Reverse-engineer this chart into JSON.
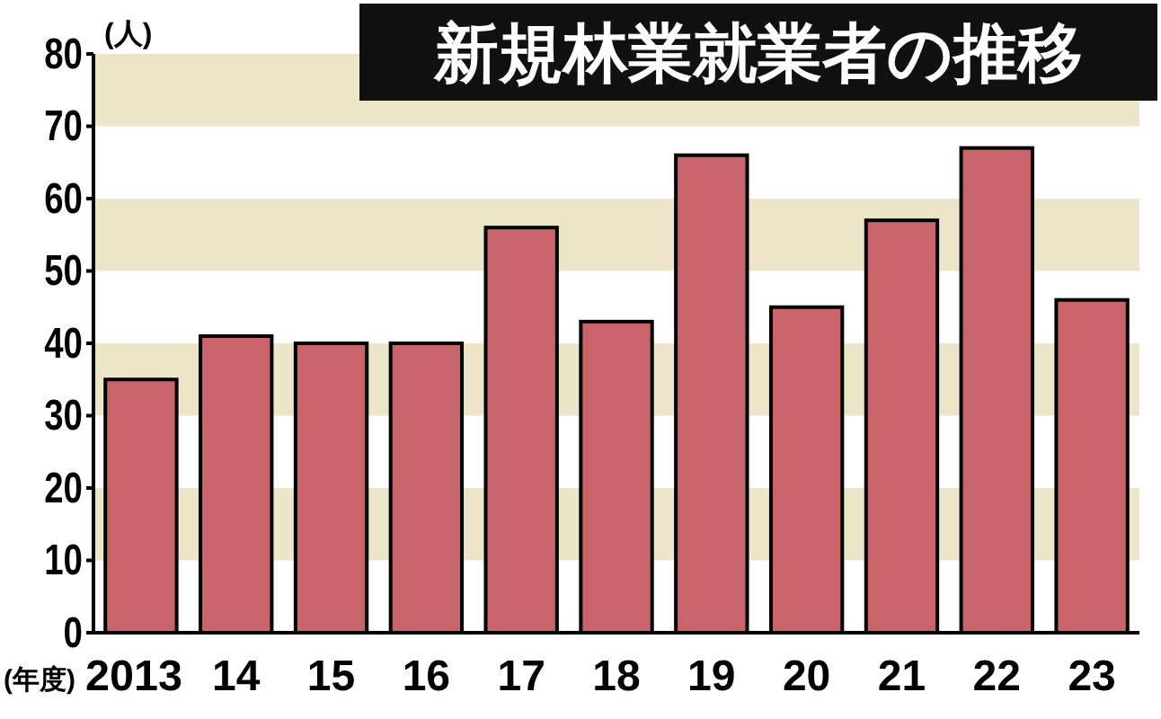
{
  "chart_data": {
    "type": "bar",
    "title": "新規林業就業者の推移",
    "ylabel": "(人)",
    "xlabel": "(年度)",
    "categories": [
      "2013",
      "14",
      "15",
      "16",
      "17",
      "18",
      "19",
      "20",
      "21",
      "22",
      "23"
    ],
    "values": [
      35,
      41,
      40,
      40,
      56,
      43,
      66,
      45,
      57,
      67,
      46
    ],
    "color": "#c8646a",
    "ylim": [
      0,
      80
    ],
    "yticks": [
      0,
      10,
      20,
      30,
      40,
      50,
      60,
      70,
      80
    ],
    "bands": [
      {
        "axis": "y",
        "from": 10,
        "to": 20,
        "color": "#ece5c8"
      },
      {
        "axis": "y",
        "from": 30,
        "to": 40,
        "color": "#ece5c8"
      },
      {
        "axis": "y",
        "from": 50,
        "to": 60,
        "color": "#ece5c8"
      },
      {
        "axis": "y",
        "from": 70,
        "to": 80,
        "color": "#ece5c8"
      }
    ]
  }
}
